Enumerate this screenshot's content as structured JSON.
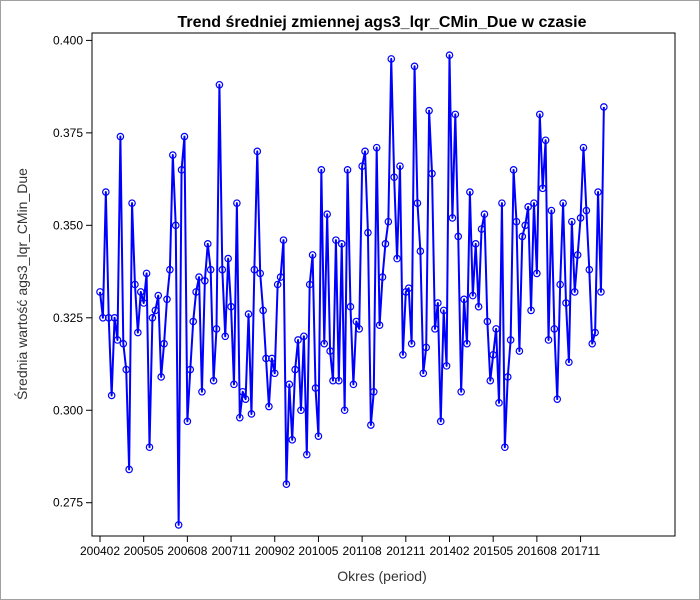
{
  "chart_data": {
    "type": "line",
    "title": "Trend średniej zmiennej ags3_lqr_CMin_Due w czasie",
    "xlabel": "Okres (period)",
    "ylabel": "Średnia wartość ags3_lqr_CMin_Due",
    "x_start_period": "200402",
    "x_tick_labels": [
      "200402",
      "200505",
      "200608",
      "200711",
      "200902",
      "201005",
      "201108",
      "201211",
      "201402",
      "201505",
      "201608",
      "201711"
    ],
    "ylim": [
      0.266,
      0.402
    ],
    "y_ticks": [
      0.275,
      0.3,
      0.325,
      0.35,
      0.375,
      0.4
    ],
    "y_tick_labels": [
      "0.275",
      "0.300",
      "0.325",
      "0.350",
      "0.375",
      "0.400"
    ],
    "grid": false,
    "legend": "none",
    "colors": {
      "series": "#0000ff",
      "frame": "#a0a0a0",
      "axis": "#000000"
    },
    "series": [
      {
        "values": [
          0.332,
          0.325,
          0.359,
          0.325,
          0.304,
          0.325,
          0.319,
          0.374,
          0.318,
          0.311,
          0.284,
          0.356,
          0.334,
          0.321,
          0.332,
          0.329,
          0.337,
          0.29,
          0.325,
          0.327,
          0.331,
          0.309,
          0.318,
          0.33,
          0.338,
          0.369,
          0.35,
          0.269,
          0.365,
          0.374,
          0.297,
          0.311,
          0.324,
          0.332,
          0.336,
          0.305,
          0.335,
          0.345,
          0.338,
          0.308,
          0.322,
          0.388,
          0.338,
          0.32,
          0.341,
          0.328,
          0.307,
          0.356,
          0.298,
          0.305,
          0.303,
          0.326,
          0.299,
          0.338,
          0.37,
          0.337,
          0.327,
          0.314,
          0.301,
          0.314,
          0.31,
          0.334,
          0.336,
          0.346,
          0.28,
          0.307,
          0.292,
          0.311,
          0.319,
          0.3,
          0.32,
          0.288,
          0.334,
          0.342,
          0.306,
          0.293,
          0.365,
          0.318,
          0.353,
          0.316,
          0.308,
          0.346,
          0.308,
          0.345,
          0.3,
          0.365,
          0.328,
          0.307,
          0.324,
          0.322,
          0.366,
          0.37,
          0.348,
          0.296,
          0.305,
          0.371,
          0.323,
          0.336,
          0.345,
          0.351,
          0.395,
          0.363,
          0.341,
          0.366,
          0.315,
          0.332,
          0.333,
          0.318,
          0.393,
          0.356,
          0.343,
          0.31,
          0.317,
          0.381,
          0.364,
          0.322,
          0.329,
          0.297,
          0.327,
          0.312,
          0.396,
          0.352,
          0.38,
          0.347,
          0.305,
          0.33,
          0.318,
          0.359,
          0.331,
          0.345,
          0.328,
          0.349,
          0.353,
          0.324,
          0.308,
          0.315,
          0.322,
          0.302,
          0.356,
          0.29,
          0.309,
          0.319,
          0.365,
          0.351,
          0.316,
          0.347,
          0.35,
          0.355,
          0.327,
          0.356,
          0.337,
          0.38,
          0.36,
          0.373,
          0.319,
          0.354,
          0.322,
          0.303,
          0.334,
          0.356,
          0.329,
          0.313,
          0.351,
          0.332,
          0.342,
          0.352,
          0.371,
          0.354,
          0.338,
          0.318,
          0.321,
          0.359,
          0.332,
          0.382
        ]
      }
    ]
  }
}
